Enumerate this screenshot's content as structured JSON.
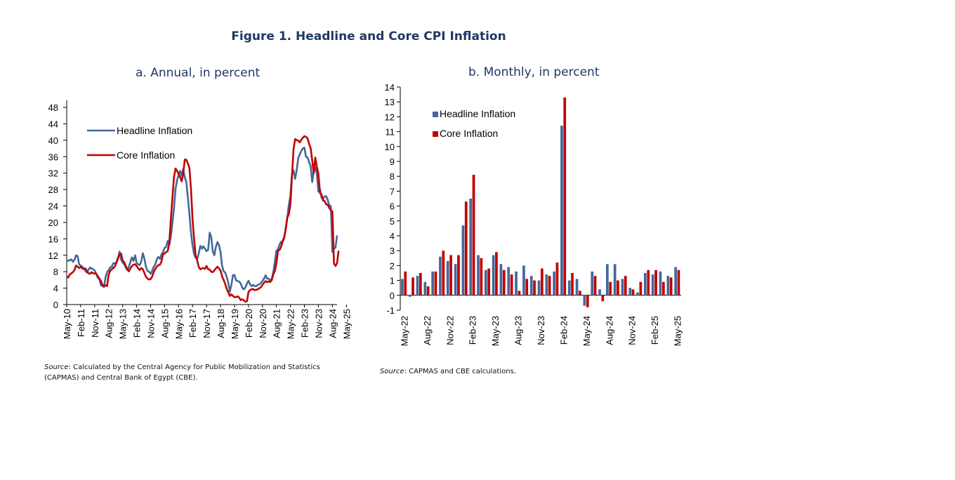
{
  "figure_title": "Figure 1. Headline and Core CPI Inflation",
  "colors": {
    "headline": "#44689a",
    "core": "#c00000",
    "title": "#1f3864"
  },
  "panel_a": {
    "source_label": "Source",
    "source_text": ": Calculated by the Central Agency for Public Mobilization and Statistics (CAPMAS) and Central Bank of Egypt (CBE)."
  },
  "panel_b": {
    "source_label": "Source",
    "source_text": ": CAPMAS and CBE calculations."
  },
  "chart_data": [
    {
      "type": "line",
      "title": "a. Annual, in percent",
      "xlabel": "",
      "ylabel": "",
      "ylim": [
        0,
        48
      ],
      "yticks": [
        0,
        4,
        8,
        12,
        16,
        20,
        24,
        28,
        32,
        36,
        40,
        44,
        48
      ],
      "x_start": "May-10",
      "x_tick_labels": [
        "May-10",
        "Feb-11",
        "Nov-11",
        "Aug-12",
        "May-13",
        "Feb-14",
        "Nov-14",
        "Aug-15",
        "May-16",
        "Feb-17",
        "Nov-17",
        "Aug-18",
        "May-19",
        "Feb-20",
        "Nov-20",
        "Aug-21",
        "May-22",
        "Feb-23",
        "Nov-23",
        "Aug-24",
        "May-25"
      ],
      "legend": "upper-left",
      "series": [
        {
          "name": "Headline Inflation",
          "color": "#44689a",
          "values": [
            10.7,
            10.7,
            10.8,
            11,
            10.4,
            10.9,
            12,
            11.8,
            9.8,
            9.5,
            9.2,
            8.8,
            8.2,
            7.8,
            8.5,
            9,
            8.8,
            8.6,
            8.3,
            7.5,
            6.5,
            6.2,
            4.7,
            4.5,
            4.3,
            6.6,
            7.9,
            8.3,
            9.1,
            9.2,
            10.1,
            10,
            10.3,
            11,
            12.9,
            11,
            10.2,
            9.8,
            9,
            8.4,
            9.2,
            10.4,
            11.5,
            10.6,
            12,
            10.1,
            9.8,
            9.6,
            10.5,
            12.5,
            11.2,
            9.2,
            8.2,
            8,
            7.5,
            8.2,
            9.2,
            9.7,
            11,
            11.6,
            11.1,
            12.2,
            12.8,
            13.8,
            14,
            15.5,
            14.5,
            16.4,
            19.8,
            23.3,
            28.1,
            30.2,
            31.5,
            32.5,
            31.5,
            33,
            30.9,
            29.8,
            26,
            22,
            17.5,
            14.4,
            12.3,
            11.4,
            11.1,
            12.5,
            14.3,
            13.6,
            14.2,
            13.6,
            13,
            13.3,
            17.5,
            16.5,
            13,
            12,
            14,
            15.2,
            14.5,
            12.7,
            9.4,
            8.1,
            7.8,
            6.7,
            5.3,
            3.1,
            4.8,
            7.2,
            7.2,
            5.9,
            5.7,
            5.6,
            5.1,
            4.1,
            3.7,
            4.2,
            5.1,
            5.8,
            4.9,
            4.5,
            4.8,
            4.5,
            4.5,
            4.8,
            4.9,
            5.3,
            5.7,
            6.3,
            7.1,
            6.3,
            6.3,
            5.8,
            6.3,
            8,
            10.5,
            13.1,
            13.5,
            14.6,
            15.3,
            15.3,
            16.2,
            18.7,
            21.3,
            24.4,
            26.5,
            31.9,
            32.7,
            30.6,
            32.7,
            35.7,
            36.6,
            37.4,
            38,
            38.2,
            36,
            35.8,
            34.6,
            33.7,
            29.8,
            32.5,
            33.3,
            31.8,
            27.5,
            28.1,
            26,
            25.7,
            26.3,
            26.4,
            25.5,
            24.1,
            24,
            12.8,
            13.6,
            13.9,
            16.8
          ]
        },
        {
          "name": "Core Inflation",
          "color": "#c00000",
          "values": [
            6.7,
            6.6,
            7.3,
            7.6,
            7.9,
            8.4,
            9.5,
            9.2,
            8.9,
            9.2,
            8.8,
            8.7,
            8.8,
            8.1,
            7.6,
            7.5,
            7.9,
            7.6,
            7.6,
            7.5,
            6.9,
            6.3,
            5.8,
            4.8,
            4.4,
            4.7,
            4.5,
            7.3,
            8.2,
            8.6,
            8.9,
            9.3,
            10.2,
            11.4,
            12.2,
            12.4,
            10.7,
            10.3,
            9.4,
            8.6,
            8.1,
            8.8,
            9.4,
            9.7,
            9.8,
            9.4,
            8.8,
            8.4,
            8.9,
            8.6,
            7.7,
            6.8,
            6.3,
            6.1,
            6.2,
            6.8,
            7.9,
            8.7,
            9.2,
            9.6,
            9.7,
            10.5,
            12.3,
            12.4,
            12.8,
            13,
            14.9,
            20.4,
            25.9,
            30.9,
            33.1,
            32.6,
            31.8,
            31.1,
            30,
            32,
            35.3,
            35.2,
            34.3,
            33.2,
            28,
            20.8,
            16,
            11.9,
            10.7,
            9.1,
            8.6,
            8.8,
            8.9,
            8.7,
            9.4,
            8.6,
            8.5,
            8,
            7.9,
            8.3,
            8.8,
            9.2,
            8.8,
            8.3,
            6.8,
            6,
            5,
            3.8,
            3,
            2.1,
            2.5,
            2.1,
            1.8,
            1.8,
            2,
            1.7,
            1.1,
            1.3,
            1,
            0.7,
            0.8,
            3.1,
            3.5,
            3.7,
            3.8,
            3.5,
            3.6,
            3.7,
            4,
            4.2,
            4.8,
            5.3,
            5.7,
            5.5,
            5.6,
            5.5,
            6,
            7.4,
            8.2,
            10.1,
            13.1,
            13.3,
            14,
            15.5,
            16.5,
            18.4,
            21.2,
            22,
            24.4,
            31.2,
            37.8,
            40.3,
            40,
            39.9,
            39.5,
            40.1,
            40.6,
            41,
            40.8,
            40.5,
            39.1,
            38.1,
            35.1,
            32,
            35.8,
            33.5,
            31.9,
            27.1,
            26.8,
            25.3,
            25.2,
            24.4,
            24.3,
            23.5,
            23,
            22.6,
            10,
            9.4,
            10.1,
            13.1
          ]
        }
      ]
    },
    {
      "type": "bar",
      "title": "b. Monthly, in percent",
      "xlabel": "",
      "ylabel": "",
      "ylim": [
        -1,
        14
      ],
      "yticks": [
        -1,
        0,
        1,
        2,
        3,
        4,
        5,
        6,
        7,
        8,
        9,
        10,
        11,
        12,
        13,
        14
      ],
      "tick_labels": [
        "May-22",
        "Aug-22",
        "Nov-22",
        "Feb-23",
        "May-23",
        "Aug-23",
        "Nov-23",
        "Feb-24",
        "May-24",
        "Aug-24",
        "Nov-24",
        "Feb-25",
        "May-25"
      ],
      "legend": "upper-left",
      "categories": [
        "May-22",
        "Jun-22",
        "Jul-22",
        "Aug-22",
        "Sep-22",
        "Oct-22",
        "Nov-22",
        "Dec-22",
        "Jan-23",
        "Feb-23",
        "Mar-23",
        "Apr-23",
        "May-23",
        "Jun-23",
        "Jul-23",
        "Aug-23",
        "Sep-23",
        "Oct-23",
        "Nov-23",
        "Dec-23",
        "Jan-24",
        "Feb-24",
        "Mar-24",
        "Apr-24",
        "May-24",
        "Jun-24",
        "Jul-24",
        "Aug-24",
        "Sep-24",
        "Oct-24",
        "Nov-24",
        "Dec-24",
        "Jan-25",
        "Feb-25",
        "Mar-25",
        "Apr-25",
        "May-25"
      ],
      "series": [
        {
          "name": "Headline Inflation",
          "color": "#44689a",
          "values": [
            1.1,
            -0.1,
            1.3,
            0.9,
            1.6,
            2.6,
            2.3,
            2.1,
            4.7,
            6.5,
            2.7,
            1.7,
            2.7,
            2.1,
            1.9,
            1.6,
            2,
            1.3,
            1,
            1.4,
            1.6,
            11.4,
            1,
            1.1,
            -0.7,
            1.6,
            0.4,
            2.1,
            2.1,
            1.1,
            0.5,
            0.2,
            1.5,
            1.4,
            1.6,
            1.3,
            1.9
          ]
        },
        {
          "name": "Core Inflation",
          "color": "#c00000",
          "values": [
            1.6,
            1.2,
            1.5,
            0.6,
            1.6,
            3,
            2.7,
            2.7,
            6.3,
            8.1,
            2.5,
            1.8,
            2.9,
            1.7,
            1.4,
            0.3,
            1.1,
            1,
            1.8,
            1.3,
            2.2,
            13.3,
            1.5,
            0.3,
            -0.8,
            1.3,
            -0.4,
            0.9,
            1,
            1.3,
            0.4,
            0.9,
            1.7,
            1.7,
            0.9,
            1.2,
            1.7
          ]
        }
      ]
    }
  ]
}
